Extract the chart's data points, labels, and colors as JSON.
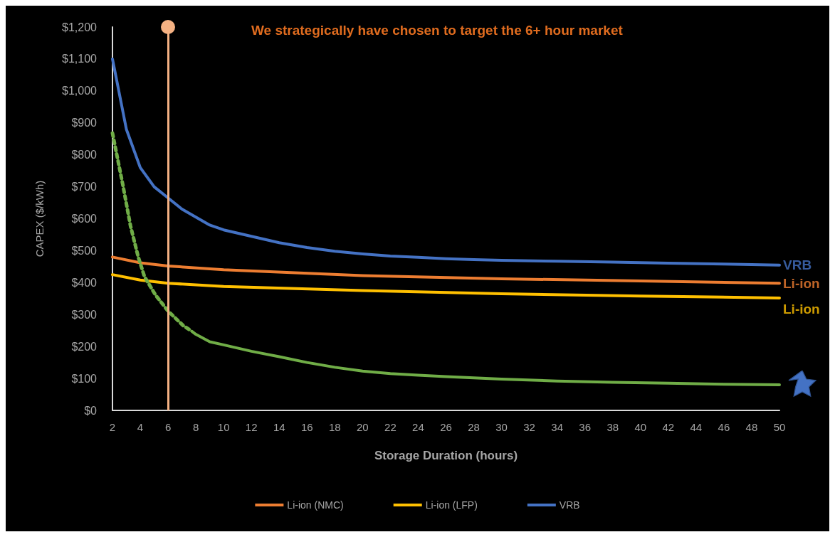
{
  "chart_data": {
    "type": "line",
    "title": "We strategically have chosen to target the 6+ hour market",
    "xlabel": "Storage Duration (hours)",
    "ylabel": "CAPEX ($/kWh)",
    "xlim": [
      2,
      50
    ],
    "xticks": [
      2,
      4,
      6,
      8,
      10,
      12,
      14,
      16,
      18,
      20,
      22,
      24,
      26,
      28,
      30,
      32,
      34,
      36,
      38,
      40,
      42,
      44,
      46,
      48,
      50
    ],
    "ylim": [
      0,
      1200
    ],
    "yticks": [
      {
        "value": 0,
        "label": "$0"
      },
      {
        "value": 100,
        "label": "$100"
      },
      {
        "value": 200,
        "label": "$200"
      },
      {
        "value": 300,
        "label": "$300"
      },
      {
        "value": 400,
        "label": "$400"
      },
      {
        "value": 500,
        "label": "$500"
      },
      {
        "value": 600,
        "label": "$600"
      },
      {
        "value": 700,
        "label": "$700"
      },
      {
        "value": 800,
        "label": "$800"
      },
      {
        "value": 900,
        "label": "$900"
      },
      {
        "value": 1000,
        "label": "$1,000"
      },
      {
        "value": 1100,
        "label": "$1,100"
      },
      {
        "value": 1200,
        "label": "$1,200"
      }
    ],
    "grid": false,
    "legend": "bottom",
    "marker": "none",
    "series": [
      {
        "name": "Li-ion (NMC)",
        "color": "#ed7d31",
        "line_style": "solid",
        "x": [
          2,
          4,
          6,
          10,
          20,
          30,
          40,
          50
        ],
        "values": [
          480,
          462,
          452,
          440,
          422,
          412,
          405,
          398
        ]
      },
      {
        "name": "Li-ion (LFP)",
        "color": "#ffc000",
        "line_style": "solid",
        "x": [
          2,
          4,
          6,
          10,
          20,
          30,
          40,
          50
        ],
        "values": [
          425,
          408,
          398,
          388,
          375,
          365,
          358,
          352
        ]
      },
      {
        "name": "VRB",
        "color": "#4472c4",
        "line_style": "solid",
        "x": [
          2,
          3,
          4,
          5,
          6,
          7,
          8,
          9,
          10,
          12,
          14,
          16,
          18,
          20,
          22,
          24,
          26,
          28,
          30,
          34,
          38,
          42,
          46,
          50
        ],
        "values": [
          1100,
          880,
          760,
          700,
          665,
          630,
          605,
          580,
          565,
          545,
          525,
          510,
          498,
          490,
          483,
          479,
          475,
          472,
          470,
          467,
          464,
          461,
          458,
          455
        ]
      },
      {
        "color": "#70ad47",
        "line_style": "dotted",
        "x": [
          2,
          2.75,
          3.3,
          3.85,
          4.3,
          5.1,
          6,
          7.1,
          7.7
        ],
        "values": [
          868,
          705,
          577,
          481,
          419,
          361,
          311,
          265,
          248
        ]
      },
      {
        "color": "#70ad47",
        "line_style": "solid",
        "x": [
          7.7,
          8,
          9,
          10,
          12,
          14,
          16,
          18,
          20,
          22,
          24,
          26,
          28,
          30,
          34,
          38,
          42,
          46,
          50
        ],
        "values": [
          248,
          238,
          215,
          205,
          185,
          168,
          150,
          135,
          123,
          115,
          110,
          106,
          102,
          98,
          92,
          88,
          85,
          82,
          80
        ]
      }
    ],
    "ref_lines": [
      {
        "axis": "x",
        "value": 6,
        "color": "#f4b183"
      }
    ],
    "annotations": [
      "VRB",
      "Li-ion",
      "Li-ion"
    ]
  }
}
